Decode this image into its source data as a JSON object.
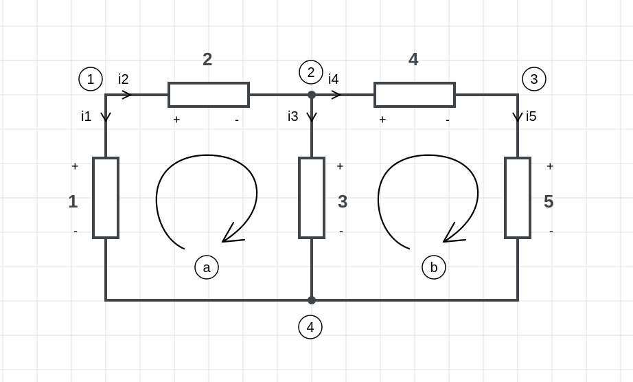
{
  "colors": {
    "wire": "#3f4549",
    "grid": "#e2e2e2",
    "background": "#ffffff",
    "ink": "#000000"
  },
  "nodes": [
    {
      "id": "n1",
      "label": "1"
    },
    {
      "id": "n2",
      "label": "2"
    },
    {
      "id": "n3",
      "label": "3"
    },
    {
      "id": "n4",
      "label": "4"
    }
  ],
  "resistors": [
    {
      "id": "r1",
      "value": "1",
      "plus": "+",
      "minus": "-"
    },
    {
      "id": "r2",
      "value": "2",
      "plus": "+",
      "minus": "-"
    },
    {
      "id": "r3",
      "value": "3",
      "plus": "+",
      "minus": "-"
    },
    {
      "id": "r4",
      "value": "4",
      "plus": "+",
      "minus": "-"
    },
    {
      "id": "r5",
      "value": "5",
      "plus": "+",
      "minus": "-"
    }
  ],
  "currents": {
    "i1": "i1",
    "i2": "i2",
    "i3": "i3",
    "i4": "i4",
    "i5": "i5"
  },
  "loops": [
    {
      "id": "loop-a",
      "label": "a"
    },
    {
      "id": "loop-b",
      "label": "b"
    }
  ]
}
